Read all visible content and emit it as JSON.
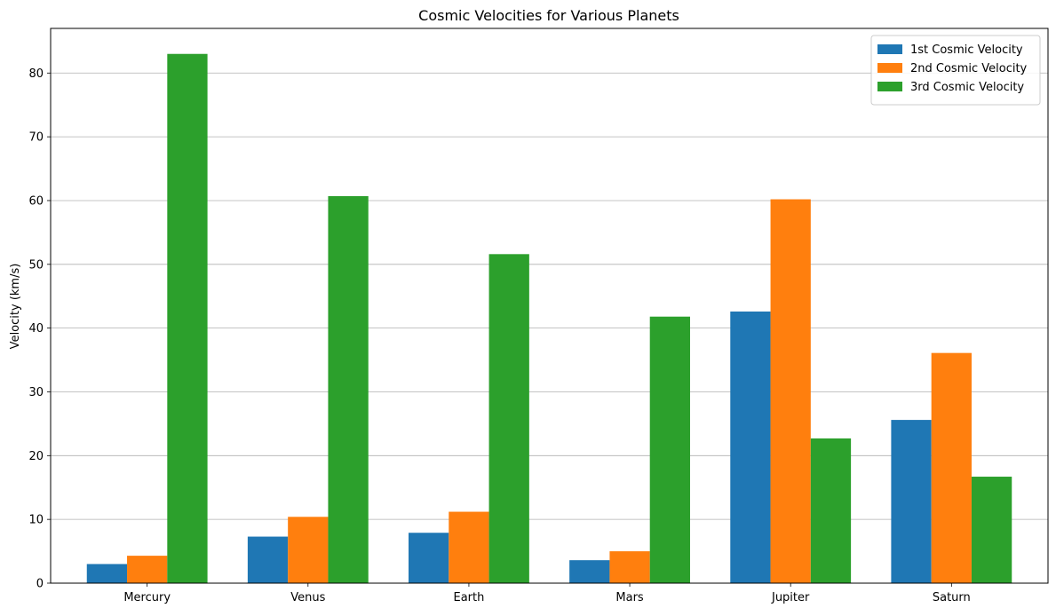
{
  "chart_data": {
    "type": "bar",
    "title": "Cosmic Velocities for Various Planets",
    "xlabel": "",
    "ylabel": "Velocity (km/s)",
    "categories": [
      "Mercury",
      "Venus",
      "Earth",
      "Mars",
      "Jupiter",
      "Saturn"
    ],
    "series": [
      {
        "name": "1st Cosmic Velocity",
        "color": "#1f77b4",
        "values": [
          3.0,
          7.3,
          7.9,
          3.6,
          42.6,
          25.6
        ]
      },
      {
        "name": "2nd Cosmic Velocity",
        "color": "#ff7f0e",
        "values": [
          4.3,
          10.4,
          11.2,
          5.0,
          60.2,
          36.1
        ]
      },
      {
        "name": "3rd Cosmic Velocity",
        "color": "#2ca02c",
        "values": [
          83.0,
          60.7,
          51.6,
          41.8,
          22.7,
          16.7
        ]
      }
    ],
    "ylim": [
      0,
      87
    ],
    "yticks": [
      0,
      10,
      20,
      30,
      40,
      50,
      60,
      70,
      80
    ],
    "grid": "y",
    "legend_position": "top-right"
  }
}
